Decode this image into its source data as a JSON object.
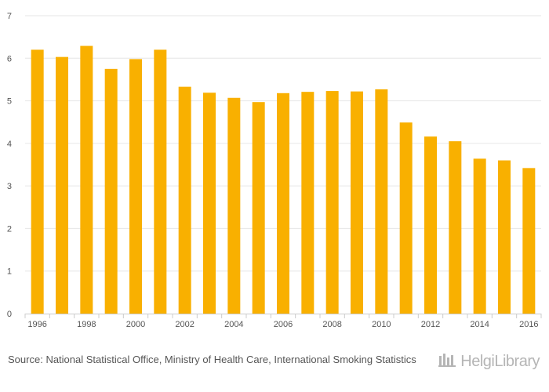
{
  "chart_data": {
    "type": "bar",
    "title": "",
    "xlabel": "",
    "ylabel": "",
    "ylim": [
      0,
      7
    ],
    "yticks": [
      0,
      1,
      2,
      3,
      4,
      5,
      6,
      7
    ],
    "grid": true,
    "bar_color": "#f9b000",
    "categories": [
      "1996",
      "1997",
      "1998",
      "1999",
      "2000",
      "2001",
      "2002",
      "2003",
      "2004",
      "2005",
      "2006",
      "2007",
      "2008",
      "2009",
      "2010",
      "2011",
      "2012",
      "2013",
      "2014",
      "2015",
      "2016"
    ],
    "xtick_labels": [
      "1996",
      "1998",
      "2000",
      "2002",
      "2004",
      "2006",
      "2008",
      "2010",
      "2012",
      "2014",
      "2016"
    ],
    "values": [
      6.2,
      6.03,
      6.29,
      5.75,
      5.98,
      6.2,
      5.33,
      5.19,
      5.07,
      4.97,
      5.18,
      5.21,
      5.23,
      5.22,
      5.27,
      4.49,
      4.16,
      4.05,
      3.64,
      3.6,
      3.42
    ]
  },
  "footer": {
    "source_label": "Source:",
    "source_text": "National Statistical Office, Ministry of Health Care, International Smoking Statistics"
  },
  "brand": {
    "name": "HelgiLibrary"
  }
}
